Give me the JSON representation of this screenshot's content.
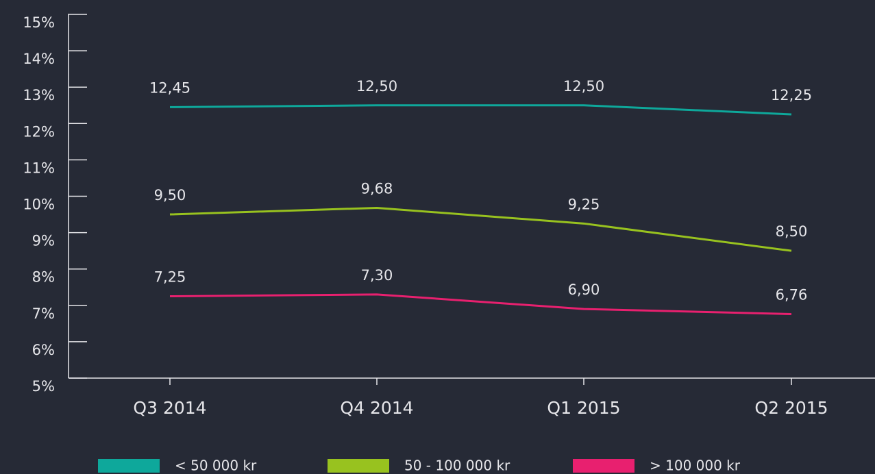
{
  "chart_data": {
    "type": "line",
    "categories": [
      "Q3 2014",
      "Q4 2014",
      "Q1 2015",
      "Q2 2015"
    ],
    "series": [
      {
        "name": "< 50 000 kr",
        "color": "#0ea89b",
        "values": [
          12.45,
          12.5,
          12.5,
          12.25
        ],
        "value_labels": [
          "12,45",
          "12,50",
          "12,50",
          "12,25"
        ]
      },
      {
        "name": "50 - 100 000 kr",
        "color": "#98c21f",
        "values": [
          9.5,
          9.68,
          9.25,
          8.5
        ],
        "value_labels": [
          "9,50",
          "9,68",
          "9,25",
          "8,50"
        ]
      },
      {
        "name": "> 100 000 kr",
        "color": "#e8206f",
        "values": [
          7.25,
          7.3,
          6.9,
          6.76
        ],
        "value_labels": [
          "7,25",
          "7,30",
          "6,90",
          "6,76"
        ]
      }
    ],
    "ylim": [
      5,
      15
    ],
    "yticks": [
      {
        "value": 5,
        "label": "5%"
      },
      {
        "value": 6,
        "label": "6%"
      },
      {
        "value": 7,
        "label": "7%"
      },
      {
        "value": 8,
        "label": "8%"
      },
      {
        "value": 9,
        "label": "9%"
      },
      {
        "value": 10,
        "label": "10%"
      },
      {
        "value": 11,
        "label": "11%"
      },
      {
        "value": 12,
        "label": "12%"
      },
      {
        "value": 13,
        "label": "13%"
      },
      {
        "value": 14,
        "label": "14%"
      },
      {
        "value": 15,
        "label": "15%"
      }
    ],
    "legend": "bottom"
  }
}
